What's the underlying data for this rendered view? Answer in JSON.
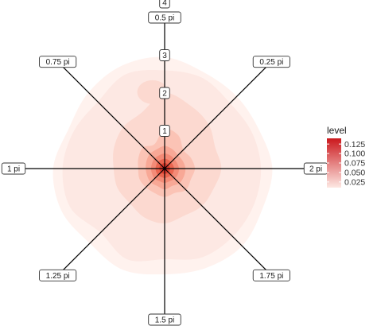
{
  "chart_data": {
    "type": "density_contour_polar",
    "direction_labels": [
      "2 pi",
      "0.25 pi",
      "0.5 pi",
      "0.75 pi",
      "1 pi",
      "1.25 pi",
      "1.5 pi",
      "1.75 pi"
    ],
    "radial_ticks": [
      {
        "value": 1,
        "label": "1"
      },
      {
        "value": 2,
        "label": "2"
      },
      {
        "value": 3,
        "label": "3"
      },
      {
        "value": 4,
        "label": "4"
      }
    ],
    "radial_max": 4,
    "legend": {
      "title": "level",
      "ticks": [
        {
          "value": 0.125,
          "label": "0.125"
        },
        {
          "value": 0.1,
          "label": "0.100"
        },
        {
          "value": 0.075,
          "label": "0.075"
        },
        {
          "value": 0.05,
          "label": "0.050"
        },
        {
          "value": 0.025,
          "label": "0.025"
        }
      ],
      "min": 0.01,
      "max": 0.14,
      "low_color": "#fde8e3",
      "high_color": "#cb181d"
    },
    "contour_levels": [
      {
        "level": 0.005,
        "color": "#fff2ee",
        "radii": [
          2.85,
          2.7,
          2.7,
          2.75,
          2.95,
          2.95,
          2.85,
          2.75,
          2.95,
          2.95,
          2.8,
          2.9,
          2.8,
          2.85,
          2.9,
          2.8
        ]
      },
      {
        "level": 0.01,
        "color": "#fde8e3",
        "radii": [
          2.55,
          2.5,
          2.45,
          2.6,
          2.6,
          2.7,
          2.5,
          2.6,
          2.7,
          2.7,
          2.4,
          2.6,
          2.4,
          2.55,
          2.55,
          2.55
        ]
      },
      {
        "level": 0.02,
        "color": "#fcd9d0",
        "radii": [
          1.5,
          1.45,
          1.65,
          1.8,
          2.0,
          1.6,
          1.55,
          1.45,
          1.35,
          1.35,
          1.3,
          1.4,
          1.45,
          1.35,
          1.4,
          1.4
        ]
      },
      {
        "level": 0.04,
        "color": "#fbc3b5",
        "radii": [
          0.8,
          0.75,
          0.7,
          0.95,
          1.05,
          0.7,
          0.8,
          0.75,
          0.7,
          0.72,
          0.7,
          0.7,
          0.75,
          0.7,
          0.8,
          0.75
        ]
      },
      {
        "level": 0.06,
        "color": "#f8a896",
        "radii": [
          0.55,
          0.52,
          0.5,
          0.55,
          0.6,
          0.55,
          0.55,
          0.52,
          0.5,
          0.5,
          0.52,
          0.5,
          0.55,
          0.5,
          0.55,
          0.55
        ]
      },
      {
        "level": 0.08,
        "color": "#f38b77",
        "radii": [
          0.38,
          0.36,
          0.36,
          0.38,
          0.4,
          0.38,
          0.38,
          0.36,
          0.36,
          0.36,
          0.38,
          0.36,
          0.38,
          0.36,
          0.38,
          0.38
        ]
      },
      {
        "level": 0.1,
        "color": "#e96550",
        "radii": [
          0.25,
          0.24,
          0.24,
          0.25,
          0.26,
          0.25,
          0.25,
          0.24,
          0.24,
          0.24,
          0.25,
          0.24,
          0.25,
          0.24,
          0.25,
          0.25
        ]
      },
      {
        "level": 0.12,
        "color": "#d93b2e",
        "radii": [
          0.14,
          0.14,
          0.14,
          0.14,
          0.15,
          0.14,
          0.14,
          0.14,
          0.14,
          0.14,
          0.14,
          0.14,
          0.14,
          0.14,
          0.14,
          0.14
        ]
      },
      {
        "level": 0.135,
        "color": "#cb181d",
        "radii": [
          0.06,
          0.06,
          0.06,
          0.06,
          0.06,
          0.06,
          0.06,
          0.06,
          0.06,
          0.06,
          0.06,
          0.06,
          0.06,
          0.06,
          0.06,
          0.06
        ]
      }
    ],
    "secondary_blob": {
      "level": 0.02,
      "color": "#fcd9d0",
      "angle_pi": 0.55,
      "r": 2.05,
      "size": 0.45
    },
    "axis_color": "#000000"
  }
}
